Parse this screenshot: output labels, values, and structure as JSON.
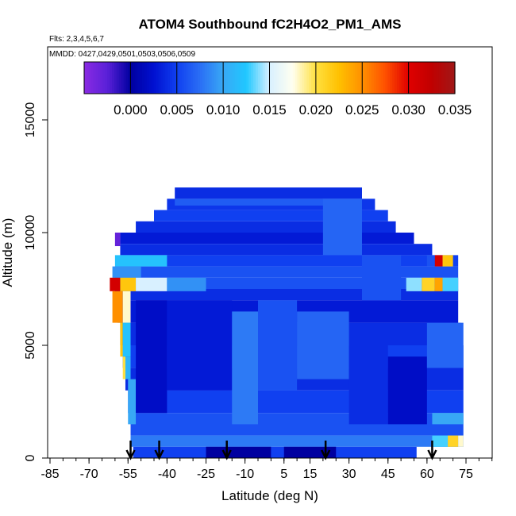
{
  "chart_data": {
    "type": "heatmap",
    "title": "ATOM4 Southbound fC2H4O2_PM1_AMS",
    "flights_label": "Flts: 2,3,4,5,6,7",
    "dates_label": "MMDD: 0427,0429,0501,0503,0506,0509",
    "xlabel": "Latitude (deg N)",
    "ylabel": "Altitude (m)",
    "xlim": [
      -90,
      90
    ],
    "ylim": [
      0,
      18000
    ],
    "x_ticks": [
      -85,
      -70,
      -55,
      -40,
      -25,
      -10,
      5,
      15,
      30,
      45,
      60,
      75
    ],
    "y_ticks": [
      0,
      5000,
      10000,
      15000
    ],
    "colorbar": {
      "range": [
        -0.005,
        0.035
      ],
      "ticks": [
        "0.000",
        "0.005",
        "0.010",
        "0.015",
        "0.020",
        "0.025",
        "0.030",
        "0.035"
      ],
      "tick_values": [
        0.0,
        0.005,
        0.01,
        0.015,
        0.02,
        0.025,
        0.03,
        0.035
      ],
      "stops": [
        {
          "v": -0.005,
          "c": "#8a2be2"
        },
        {
          "v": -0.0025,
          "c": "#5a20d8"
        },
        {
          "v": 0.0,
          "c": "#0000a0"
        },
        {
          "v": 0.0025,
          "c": "#0010d0"
        },
        {
          "v": 0.005,
          "c": "#1040f0"
        },
        {
          "v": 0.0075,
          "c": "#2a6ef5"
        },
        {
          "v": 0.01,
          "c": "#38a8f5"
        },
        {
          "v": 0.0125,
          "c": "#20c8ff"
        },
        {
          "v": 0.015,
          "c": "#d8f0ff"
        },
        {
          "v": 0.0175,
          "c": "#fffff0"
        },
        {
          "v": 0.02,
          "c": "#ffe040"
        },
        {
          "v": 0.0225,
          "c": "#ffc000"
        },
        {
          "v": 0.025,
          "c": "#ff9000"
        },
        {
          "v": 0.0275,
          "c": "#ff5000"
        },
        {
          "v": 0.03,
          "c": "#e00000"
        },
        {
          "v": 0.0325,
          "c": "#c00000"
        },
        {
          "v": 0.035,
          "c": "#a01818"
        }
      ]
    },
    "arrow_latitudes": [
      -54,
      -43,
      -17,
      21,
      62
    ],
    "cells": [
      {
        "lat0": -37,
        "lat1": 35,
        "alt0": 11500,
        "alt1": 12000,
        "v": 0.004
      },
      {
        "lat0": -40,
        "lat1": 40,
        "alt0": 11000,
        "alt1": 11500,
        "v": 0.0045
      },
      {
        "lat0": -45,
        "lat1": 45,
        "alt0": 10500,
        "alt1": 11000,
        "v": 0.005
      },
      {
        "lat0": -52,
        "lat1": 48,
        "alt0": 10000,
        "alt1": 10500,
        "v": 0.004
      },
      {
        "lat0": -58,
        "lat1": 55,
        "alt0": 9500,
        "alt1": 10000,
        "v": 0.003
      },
      {
        "lat0": -58,
        "lat1": 62,
        "alt0": 9000,
        "alt1": 9500,
        "v": 0.004
      },
      {
        "lat0": -58,
        "lat1": 72,
        "alt0": 8500,
        "alt1": 9000,
        "v": 0.005
      },
      {
        "lat0": -60,
        "lat1": 72,
        "alt0": 8000,
        "alt1": 8500,
        "v": 0.006
      },
      {
        "lat0": -61,
        "lat1": 72,
        "alt0": 7500,
        "alt1": 8000,
        "v": 0.006
      },
      {
        "lat0": -60,
        "lat1": 72,
        "alt0": 7000,
        "alt1": 7500,
        "v": 0.004
      },
      {
        "lat0": -59,
        "lat1": 72,
        "alt0": 6000,
        "alt1": 7000,
        "v": 0.003
      },
      {
        "lat0": -58,
        "lat1": 73,
        "alt0": 5000,
        "alt1": 6000,
        "v": 0.004
      },
      {
        "lat0": -57,
        "lat1": 74,
        "alt0": 4000,
        "alt1": 5000,
        "v": 0.005
      },
      {
        "lat0": -56,
        "lat1": 74,
        "alt0": 3000,
        "alt1": 4000,
        "v": 0.004
      },
      {
        "lat0": -55,
        "lat1": 74,
        "alt0": 2000,
        "alt1": 3000,
        "v": 0.005
      },
      {
        "lat0": -54,
        "lat1": 74,
        "alt0": 1000,
        "alt1": 2000,
        "v": 0.006
      },
      {
        "lat0": -54,
        "lat1": 74,
        "alt0": 500,
        "alt1": 1000,
        "v": 0.008
      },
      {
        "lat0": -53,
        "lat1": 56,
        "alt0": 0,
        "alt1": 500,
        "v": 0.005
      },
      {
        "lat0": -37,
        "lat1": 35,
        "alt0": 11200,
        "alt1": 11500,
        "v": 0.0065
      },
      {
        "lat0": -60,
        "lat1": -58,
        "alt0": 9400,
        "alt1": 10000,
        "v": -0.003
      },
      {
        "lat0": -60,
        "lat1": -40,
        "alt0": 8500,
        "alt1": 9000,
        "v": 0.012
      },
      {
        "lat0": -61,
        "lat1": -50,
        "alt0": 8000,
        "alt1": 8500,
        "v": 0.009
      },
      {
        "lat0": -62,
        "lat1": -58,
        "alt0": 7400,
        "alt1": 8000,
        "v": 0.031
      },
      {
        "lat0": -58,
        "lat1": -52,
        "alt0": 7400,
        "alt1": 8000,
        "v": 0.022
      },
      {
        "lat0": -52,
        "lat1": -40,
        "alt0": 7400,
        "alt1": 8000,
        "v": 0.015
      },
      {
        "lat0": -40,
        "lat1": -25,
        "alt0": 7400,
        "alt1": 8000,
        "v": 0.009
      },
      {
        "lat0": -61,
        "lat1": -57,
        "alt0": 6000,
        "alt1": 7400,
        "v": 0.025
      },
      {
        "lat0": -57,
        "lat1": -54,
        "alt0": 6000,
        "alt1": 7400,
        "v": 0.018
      },
      {
        "lat0": -58,
        "lat1": -57,
        "alt0": 4500,
        "alt1": 6000,
        "v": 0.022
      },
      {
        "lat0": -57,
        "lat1": -54,
        "alt0": 4500,
        "alt1": 6000,
        "v": 0.012
      },
      {
        "lat0": -57,
        "lat1": -56,
        "alt0": 3500,
        "alt1": 4500,
        "v": 0.02
      },
      {
        "lat0": -56,
        "lat1": -54,
        "alt0": 3500,
        "alt1": 4500,
        "v": 0.011
      },
      {
        "lat0": -55,
        "lat1": -52,
        "alt0": 1500,
        "alt1": 3500,
        "v": 0.01
      },
      {
        "lat0": -52,
        "lat1": -40,
        "alt0": 2000,
        "alt1": 7000,
        "v": 0.002
      },
      {
        "lat0": -40,
        "lat1": -15,
        "alt0": 3000,
        "alt1": 7000,
        "v": 0.003
      },
      {
        "lat0": -15,
        "lat1": -5,
        "alt0": 1500,
        "alt1": 6500,
        "v": 0.008
      },
      {
        "lat0": -5,
        "lat1": 10,
        "alt0": 3000,
        "alt1": 7000,
        "v": 0.006
      },
      {
        "lat0": 10,
        "lat1": 30,
        "alt0": 3500,
        "alt1": 6500,
        "v": 0.007
      },
      {
        "lat0": 30,
        "lat1": 45,
        "alt0": 1500,
        "alt1": 5000,
        "v": 0.004
      },
      {
        "lat0": 45,
        "lat1": 60,
        "alt0": 1500,
        "alt1": 4500,
        "v": 0.002
      },
      {
        "lat0": 60,
        "lat1": 74,
        "alt0": 4000,
        "alt1": 6000,
        "v": 0.007
      },
      {
        "lat0": 62,
        "lat1": 74,
        "alt0": 1500,
        "alt1": 2000,
        "v": 0.01
      },
      {
        "lat0": 20,
        "lat1": 35,
        "alt0": 9000,
        "alt1": 11500,
        "v": 0.007
      },
      {
        "lat0": 35,
        "lat1": 50,
        "alt0": 7000,
        "alt1": 9000,
        "v": 0.006
      },
      {
        "lat0": 52,
        "lat1": 58,
        "alt0": 7400,
        "alt1": 8000,
        "v": 0.014
      },
      {
        "lat0": 58,
        "lat1": 63,
        "alt0": 7400,
        "alt1": 8000,
        "v": 0.021
      },
      {
        "lat0": 63,
        "lat1": 66,
        "alt0": 7400,
        "alt1": 8000,
        "v": 0.024
      },
      {
        "lat0": 66,
        "lat1": 72,
        "alt0": 7400,
        "alt1": 8000,
        "v": 0.013
      },
      {
        "lat0": 63,
        "lat1": 66,
        "alt0": 8500,
        "alt1": 9000,
        "v": 0.031
      },
      {
        "lat0": 66,
        "lat1": 70,
        "alt0": 8500,
        "alt1": 9000,
        "v": 0.022
      },
      {
        "lat0": 60,
        "lat1": 63,
        "alt0": 8500,
        "alt1": 9000,
        "v": 0.006
      },
      {
        "lat0": 62,
        "lat1": 68,
        "alt0": 500,
        "alt1": 1000,
        "v": 0.013
      },
      {
        "lat0": 68,
        "lat1": 72,
        "alt0": 500,
        "alt1": 1000,
        "v": 0.021
      },
      {
        "lat0": 72,
        "lat1": 74,
        "alt0": 500,
        "alt1": 1000,
        "v": 0.018
      },
      {
        "lat0": -25,
        "lat1": 0,
        "alt0": 0,
        "alt1": 500,
        "v": 0.0
      },
      {
        "lat0": 5,
        "lat1": 25,
        "alt0": 0,
        "alt1": 500,
        "v": 0.0
      }
    ]
  }
}
